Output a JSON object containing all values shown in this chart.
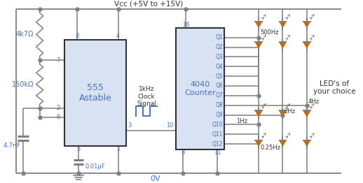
{
  "bg_color": "#ffffff",
  "line_color": "#7f7f7f",
  "blue_color": "#4472c4",
  "dark_color": "#333333",
  "orange_color": "#cc6600",
  "vcc_label": "Vcc (+5V to +15V)",
  "clock_label": "1kHz\nClock\nSignal",
  "ic555_label": "555\nAstable",
  "ic4040_label": "4040\nCounter",
  "gnd_label": "0V",
  "cap_small_label": "0.01μF",
  "cap_large_label": "4.7nF",
  "r1_label": "4k7Ω",
  "r2_label": "150kΩ",
  "leds_label": "LED's of\nyour choice",
  "freq_500": "500Hz",
  "freq_4": "4Hz",
  "freq_2": "2Hz",
  "freq_1": "1Hz",
  "freq_025": "0.25Hz",
  "figsize": [
    5.18,
    2.62
  ],
  "dpi": 100
}
